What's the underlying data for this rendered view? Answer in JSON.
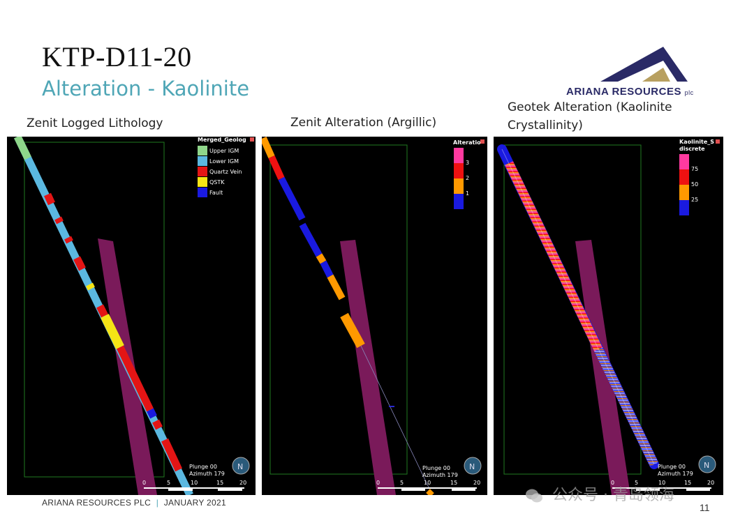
{
  "slide": {
    "title": "KTP-D11-20",
    "subtitle": "Alteration - Kaolinite",
    "page_number": "11"
  },
  "logo": {
    "name": "ARIANA RESOURCES",
    "suffix": "plc",
    "colors": {
      "navy": "#2a2a66",
      "gold": "#b8a060"
    }
  },
  "footer": {
    "company": "ARIANA RESOURCES PLC",
    "separator": "|",
    "date": "JANUARY 2021"
  },
  "watermark": {
    "text": "公众号 · 青岛领海"
  },
  "panels": [
    {
      "caption": "Zenit Logged Lithology",
      "legend": {
        "title": "Merged_Geolog",
        "items": [
          {
            "label": "Upper IGM",
            "color": "#8fd68a"
          },
          {
            "label": "Lower IGM",
            "color": "#5bb8e0"
          },
          {
            "label": "Quartz Vein",
            "color": "#e31515"
          },
          {
            "label": "QSTK",
            "color": "#f5e415"
          },
          {
            "label": "Fault",
            "color": "#1a1ae0"
          }
        ]
      },
      "view": {
        "plunge": "Plunge 00",
        "azimuth": "Azimuth 179"
      },
      "scale_labels": [
        "0",
        "5",
        "10",
        "15",
        "20"
      ]
    },
    {
      "caption": "Zenit Alteration (Argillic)",
      "legend": {
        "title": "Alteratio",
        "items": [
          {
            "label": "3",
            "color": "#ff3aa0"
          },
          {
            "label": "2",
            "color": "#ee1111"
          },
          {
            "label": "1",
            "color": "#ff9900"
          },
          {
            "label": "",
            "color": "#1a1ae0"
          }
        ]
      },
      "view": {
        "plunge": "Plunge 00",
        "azimuth": "Azimuth 179"
      },
      "scale_labels": [
        "0",
        "5",
        "10",
        "15",
        "20"
      ]
    },
    {
      "caption": "Geotek Alteration (Kaolinite Crystallinity)",
      "legend": {
        "title": "Kaolinite_S",
        "title2": "discrete",
        "items": [
          {
            "label": "75",
            "color": "#ff3aa0"
          },
          {
            "label": "50",
            "color": "#ee1111"
          },
          {
            "label": "25",
            "color": "#ff9900"
          },
          {
            "label": "",
            "color": "#1a1ae0"
          }
        ]
      },
      "view": {
        "plunge": "Plunge 00",
        "azimuth": "Azimuth 179"
      },
      "scale_labels": [
        "0",
        "5",
        "10",
        "15",
        "20"
      ]
    }
  ],
  "colors": {
    "subtitle": "#4fa6b6",
    "wireframe": "#1f7a1f",
    "fault_zone": "#7a1a5a"
  }
}
